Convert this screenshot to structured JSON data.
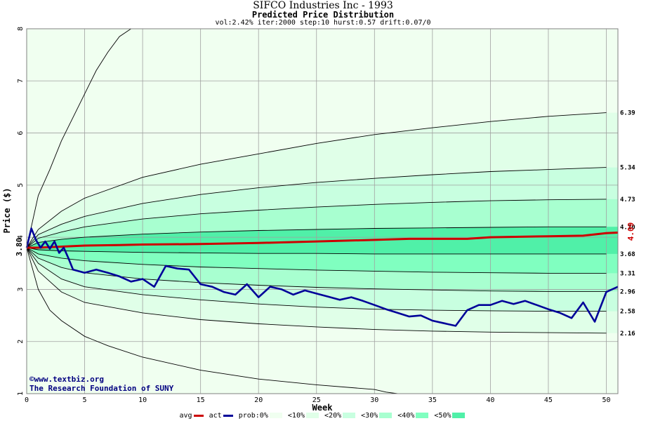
{
  "header": {
    "title": "SIFCO Industries Inc - 1993",
    "subtitle": "Predicted Price Distribution",
    "params": "vol:2.42% iter:2000 step:10 hurst:0.57 drift:0.07/0"
  },
  "watermark": {
    "line1": "www.textbiz.org",
    "line2": "The Research Foundation of SUNY"
  },
  "legend": {
    "avg": "avg",
    "act": "act",
    "prob": "prob:0%",
    "bands": [
      "10%",
      "20%",
      "30%",
      "40%",
      "50%"
    ]
  },
  "colors": {
    "avg": "#cc0000",
    "act": "#000099",
    "band_0": "#f0fff0",
    "band_10": "#e0ffe8",
    "band_20": "#c8ffe0",
    "band_30": "#a8ffd0",
    "band_40": "#80ffc0",
    "band_50": "#50f0a8"
  },
  "chart_data": {
    "type": "line",
    "title": "SIFCO Industries Inc - 1993",
    "subtitle": "Predicted Price Distribution",
    "xlabel": "Week",
    "ylabel": "Price ($)",
    "xlim": [
      0,
      51
    ],
    "ylim": [
      1,
      8
    ],
    "x_ticks": [
      0,
      5,
      10,
      15,
      20,
      25,
      30,
      35,
      40,
      45,
      50
    ],
    "y_ticks": [
      1,
      2,
      3,
      4,
      5,
      6,
      7,
      8
    ],
    "grid": true,
    "start_price": 3.8,
    "start_label": "3.80",
    "end_avg_label": "4.09",
    "right_labels": [
      "6.39",
      "5.34",
      "4.73",
      "4.20",
      "3.68",
      "3.31",
      "2.96",
      "2.58",
      "2.16"
    ],
    "percentile_curves": [
      {
        "name": "upper_max",
        "x": [
          0,
          1,
          2,
          3,
          4,
          5,
          6,
          7,
          8,
          9
        ],
        "values": [
          3.8,
          4.8,
          5.3,
          5.85,
          6.3,
          6.75,
          7.2,
          7.55,
          7.85,
          8.0
        ]
      },
      {
        "name": "p95",
        "x": [
          0,
          1,
          3,
          5,
          10,
          15,
          20,
          25,
          30,
          35,
          40,
          45,
          50
        ],
        "values": [
          3.8,
          4.15,
          4.5,
          4.75,
          5.15,
          5.4,
          5.6,
          5.8,
          5.97,
          6.1,
          6.22,
          6.32,
          6.39
        ]
      },
      {
        "name": "p85",
        "x": [
          0,
          1,
          3,
          5,
          10,
          15,
          20,
          25,
          30,
          35,
          40,
          45,
          50
        ],
        "values": [
          3.8,
          4.05,
          4.25,
          4.4,
          4.65,
          4.82,
          4.95,
          5.05,
          5.13,
          5.2,
          5.26,
          5.3,
          5.34
        ]
      },
      {
        "name": "p75",
        "x": [
          0,
          1,
          3,
          5,
          10,
          15,
          20,
          25,
          30,
          35,
          40,
          45,
          50
        ],
        "values": [
          3.8,
          3.98,
          4.1,
          4.2,
          4.35,
          4.45,
          4.52,
          4.58,
          4.63,
          4.67,
          4.7,
          4.72,
          4.73
        ]
      },
      {
        "name": "p60",
        "x": [
          0,
          1,
          3,
          5,
          10,
          15,
          20,
          25,
          30,
          35,
          40,
          45,
          50
        ],
        "values": [
          3.8,
          3.9,
          3.96,
          4.0,
          4.06,
          4.1,
          4.13,
          4.15,
          4.17,
          4.18,
          4.19,
          4.2,
          4.2
        ]
      },
      {
        "name": "p40",
        "x": [
          0,
          1,
          3,
          5,
          10,
          15,
          20,
          25,
          30,
          35,
          40,
          45,
          50
        ],
        "values": [
          3.8,
          3.76,
          3.74,
          3.73,
          3.71,
          3.7,
          3.69,
          3.69,
          3.68,
          3.68,
          3.68,
          3.68,
          3.68
        ]
      },
      {
        "name": "p25",
        "x": [
          0,
          1,
          3,
          5,
          10,
          15,
          20,
          25,
          30,
          35,
          40,
          45,
          50
        ],
        "values": [
          3.8,
          3.68,
          3.6,
          3.55,
          3.48,
          3.43,
          3.4,
          3.37,
          3.35,
          3.33,
          3.32,
          3.31,
          3.31
        ]
      },
      {
        "name": "p15",
        "x": [
          0,
          1,
          3,
          5,
          10,
          15,
          20,
          25,
          30,
          35,
          40,
          45,
          50
        ],
        "values": [
          3.8,
          3.6,
          3.42,
          3.32,
          3.2,
          3.13,
          3.08,
          3.04,
          3.01,
          2.99,
          2.97,
          2.96,
          2.96
        ]
      },
      {
        "name": "p05",
        "x": [
          0,
          1,
          3,
          5,
          10,
          15,
          20,
          25,
          30,
          35,
          40,
          45,
          50
        ],
        "values": [
          3.8,
          3.5,
          3.2,
          3.05,
          2.9,
          2.8,
          2.72,
          2.66,
          2.62,
          2.6,
          2.59,
          2.58,
          2.58
        ]
      },
      {
        "name": "p01",
        "x": [
          0,
          1,
          3,
          5,
          10,
          15,
          20,
          25,
          30,
          35,
          40,
          45,
          50
        ],
        "values": [
          3.8,
          3.35,
          2.95,
          2.75,
          2.55,
          2.42,
          2.34,
          2.28,
          2.23,
          2.2,
          2.18,
          2.17,
          2.16
        ]
      },
      {
        "name": "lower_min",
        "x": [
          0,
          1,
          2,
          3,
          5,
          7,
          10,
          15,
          20,
          25,
          30,
          31,
          32
        ],
        "values": [
          3.8,
          3.0,
          2.6,
          2.4,
          2.1,
          1.92,
          1.7,
          1.45,
          1.28,
          1.17,
          1.08,
          1.03,
          1.0
        ]
      }
    ],
    "series": [
      {
        "name": "avg",
        "x": [
          0,
          1,
          2,
          3,
          5,
          8,
          10,
          15,
          20,
          25,
          30,
          33,
          35,
          38,
          40,
          45,
          48,
          50,
          51
        ],
        "values": [
          3.8,
          3.8,
          3.81,
          3.82,
          3.84,
          3.85,
          3.86,
          3.87,
          3.89,
          3.92,
          3.95,
          3.97,
          3.97,
          3.97,
          4.0,
          4.02,
          4.03,
          4.08,
          4.09
        ]
      },
      {
        "name": "act",
        "x": [
          0,
          0.4,
          0.8,
          1.2,
          1.6,
          2.0,
          2.4,
          2.8,
          3.2,
          3.6,
          4,
          5,
          6,
          7,
          8,
          9,
          10,
          11,
          12,
          13,
          14,
          15,
          16,
          17,
          18,
          19,
          20,
          21,
          22,
          23,
          24,
          25,
          26,
          27,
          28,
          29,
          30,
          31,
          32,
          33,
          34,
          35,
          36,
          37,
          38,
          39,
          40,
          41,
          42,
          43,
          44,
          45,
          46,
          47,
          48,
          49,
          50,
          51
        ],
        "values": [
          3.8,
          4.17,
          3.95,
          3.8,
          3.92,
          3.78,
          3.92,
          3.7,
          3.8,
          3.6,
          3.38,
          3.32,
          3.38,
          3.32,
          3.25,
          3.15,
          3.2,
          3.05,
          3.45,
          3.4,
          3.38,
          3.1,
          3.05,
          2.95,
          2.9,
          3.1,
          2.85,
          3.05,
          3.0,
          2.9,
          2.98,
          2.92,
          2.86,
          2.8,
          2.85,
          2.78,
          2.7,
          2.62,
          2.55,
          2.48,
          2.5,
          2.4,
          2.35,
          2.3,
          2.6,
          2.7,
          2.7,
          2.78,
          2.72,
          2.78,
          2.7,
          2.62,
          2.55,
          2.45,
          2.75,
          2.38,
          2.95,
          3.05
        ]
      }
    ]
  }
}
